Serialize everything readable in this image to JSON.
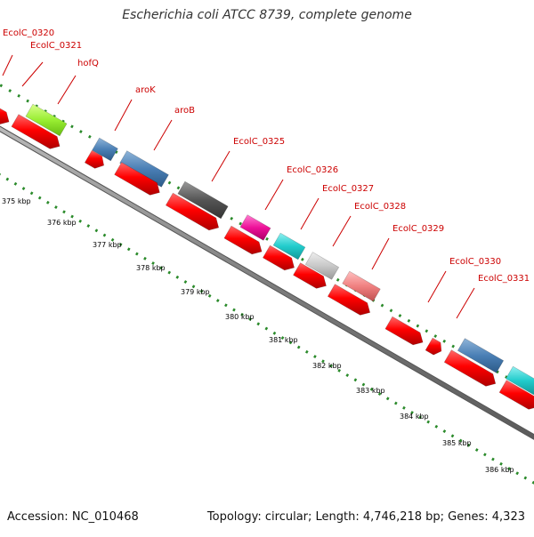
{
  "header": {
    "title": "Escherichia coli ATCC 8739, complete genome"
  },
  "footer": {
    "accession": "Accession: NC_010468",
    "summary": "Topology: circular; Length: 4,746,218 bp; Genes: 4,323"
  },
  "colors": {
    "cds_red": "#ff0000",
    "backbone": "#808080",
    "tick_green": "#2a8a2a",
    "label_red": "#cc0000"
  },
  "gene_labels": [
    {
      "text": "EcolC_0320"
    },
    {
      "text": "EcolC_0321"
    },
    {
      "text": "hofQ"
    },
    {
      "text": "aroK"
    },
    {
      "text": "aroB"
    },
    {
      "text": "EcolC_0325"
    },
    {
      "text": "EcolC_0326"
    },
    {
      "text": "EcolC_0327"
    },
    {
      "text": "EcolC_0328"
    },
    {
      "text": "EcolC_0329"
    },
    {
      "text": "EcolC_0330"
    },
    {
      "text": "EcolC_0331"
    }
  ],
  "scale_labels": [
    {
      "text": "375 kbp"
    },
    {
      "text": "376 kbp"
    },
    {
      "text": "377 kbp"
    },
    {
      "text": "378 kbp"
    },
    {
      "text": "379 kbp"
    },
    {
      "text": "380 kbp"
    },
    {
      "text": "381 kbp"
    },
    {
      "text": "382 kbp"
    },
    {
      "text": "383 kbp"
    },
    {
      "text": "384 kbp"
    },
    {
      "text": "385 kbp"
    },
    {
      "text": "386 kbp"
    }
  ]
}
